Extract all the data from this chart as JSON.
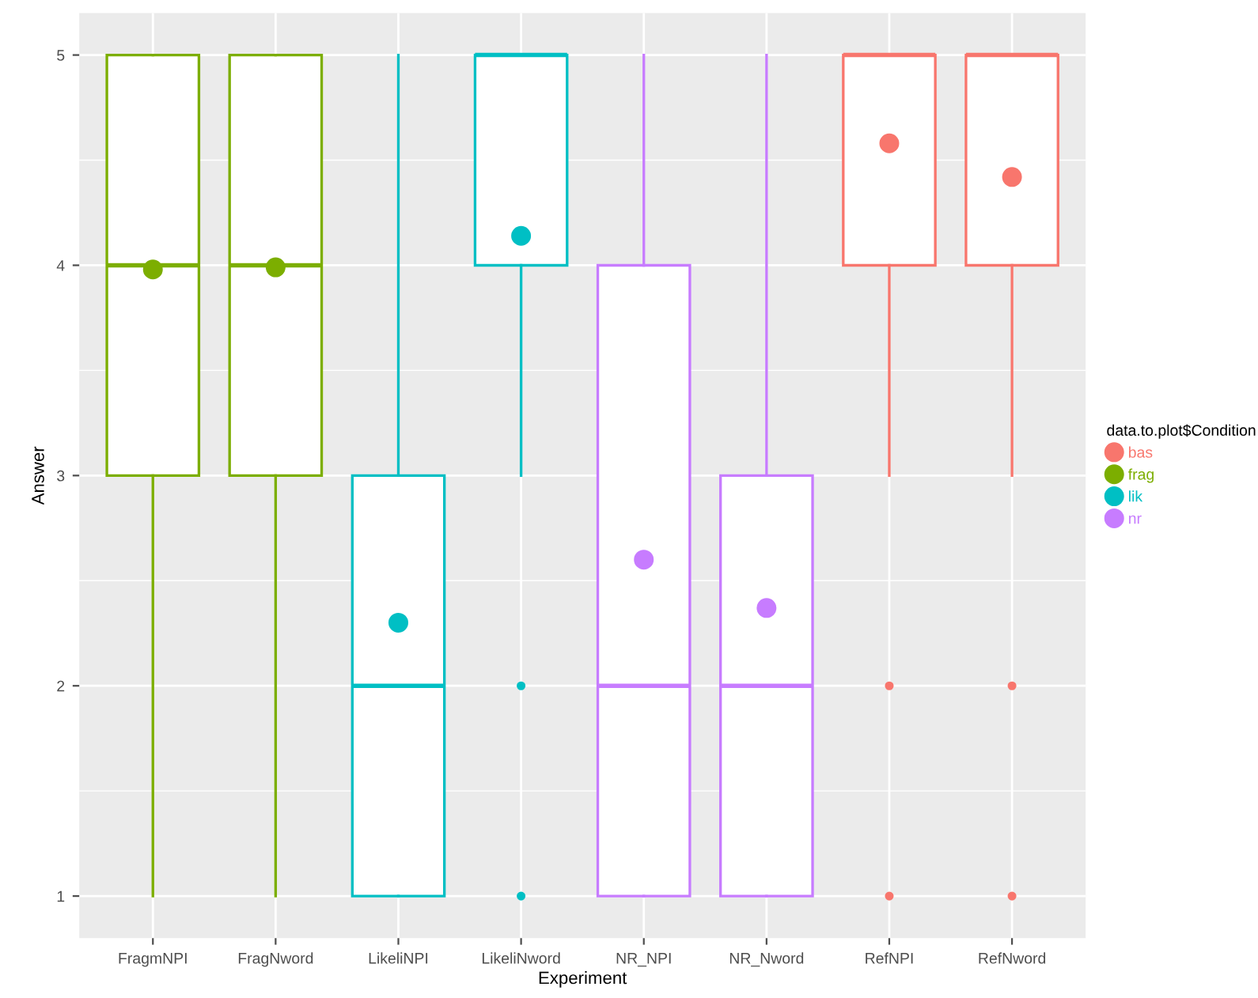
{
  "chart_data": {
    "type": "box",
    "xlabel": "Experiment",
    "ylabel": "Answer",
    "legend_title": "data.to.plot$Condition",
    "categories": [
      "FragmNPI",
      "FragNword",
      "LikeliNPI",
      "LikeliNword",
      "NR_NPI",
      "NR_Nword",
      "RefNPI",
      "RefNword"
    ],
    "ylim": [
      0.8,
      5.2
    ],
    "yticks": [
      1,
      2,
      3,
      4,
      5
    ],
    "grid": true,
    "legend": "right",
    "marker": "circle",
    "series": [
      {
        "name": "bas",
        "color": "#f8766d",
        "boxes": [
          null,
          null,
          null,
          null,
          null,
          null,
          {
            "low": 3,
            "q1": 4,
            "median": 5,
            "q3": 5,
            "high": 5,
            "mean": 4.58,
            "outliers": [
              2,
              1
            ]
          },
          {
            "low": 3,
            "q1": 4,
            "median": 5,
            "q3": 5,
            "high": 5,
            "mean": 4.42,
            "outliers": [
              2,
              1
            ]
          }
        ]
      },
      {
        "name": "frag",
        "color": "#7cae00",
        "boxes": [
          {
            "low": 1,
            "q1": 3,
            "median": 4,
            "q3": 5,
            "high": 5,
            "mean": 3.98
          },
          {
            "low": 1,
            "q1": 3,
            "median": 4,
            "q3": 5,
            "high": 5,
            "mean": 3.99
          },
          null,
          null,
          null,
          null,
          null,
          null
        ]
      },
      {
        "name": "lik",
        "color": "#00bfc4",
        "boxes": [
          null,
          null,
          {
            "low": 1,
            "q1": 1,
            "median": 2,
            "q3": 3,
            "high": 5,
            "mean": 2.3
          },
          {
            "low": 3,
            "q1": 4,
            "median": 5,
            "q3": 5,
            "high": 5,
            "mean": 4.14,
            "outliers": [
              2,
              1
            ]
          },
          null,
          null,
          null,
          null
        ]
      },
      {
        "name": "nr",
        "color": "#c77cff",
        "boxes": [
          null,
          null,
          null,
          null,
          {
            "low": 1,
            "q1": 1,
            "median": 2,
            "q3": 4,
            "high": 5,
            "mean": 2.6
          },
          {
            "low": 1,
            "q1": 1,
            "median": 2,
            "q3": 3,
            "high": 5,
            "mean": 2.37
          },
          null,
          null
        ]
      }
    ]
  }
}
